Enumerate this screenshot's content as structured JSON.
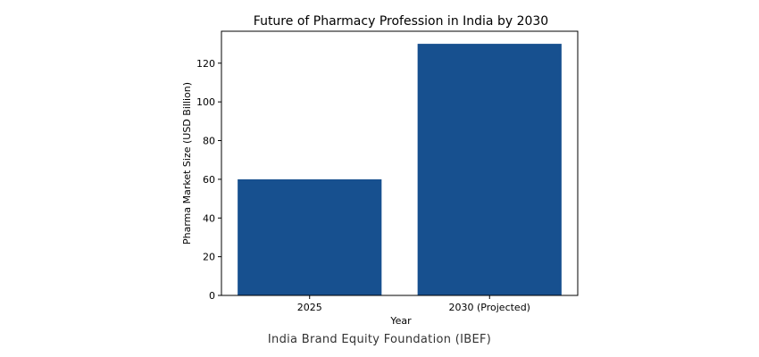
{
  "chart_data": {
    "type": "bar",
    "title": "Future of Pharmacy Profession in India by 2030",
    "xlabel": "Year",
    "ylabel": "Pharma Market Size (USD Billion)",
    "categories": [
      "2025",
      "2030 (Projected)"
    ],
    "values": [
      60,
      130
    ],
    "ylim": [
      0,
      136.5
    ],
    "yticks": [
      0,
      20,
      40,
      60,
      80,
      100,
      120
    ],
    "bar_color": "#17508f",
    "grid": false,
    "legend": "none"
  },
  "source_note": "India Brand Equity Foundation (IBEF)"
}
